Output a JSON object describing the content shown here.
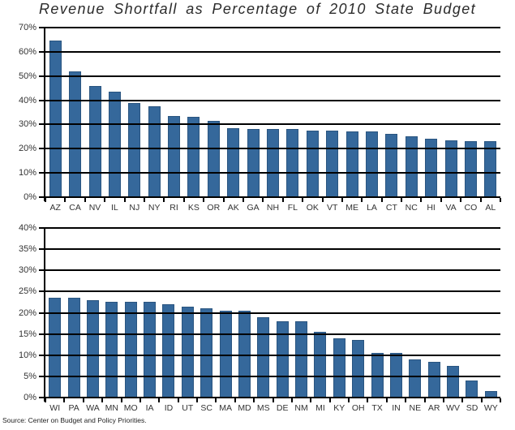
{
  "title": "Revenue Shortfall as Percentage of 2010 State Budget",
  "source": "Source: Center on Budget and Policy Priorities.",
  "colors": {
    "bar": "#35689B",
    "bar_border": "#2A5580",
    "grid": "#000000",
    "label": "#333333"
  },
  "chart_data": [
    {
      "type": "bar",
      "title": "Revenue Shortfall as Percentage of 2010 State Budget (states above ~23%)",
      "categories": [
        "AZ",
        "CA",
        "NV",
        "IL",
        "NJ",
        "NY",
        "RI",
        "KS",
        "OR",
        "AK",
        "GA",
        "NH",
        "FL",
        "OK",
        "VT",
        "ME",
        "LA",
        "CT",
        "NC",
        "HI",
        "VA",
        "CO",
        "AL"
      ],
      "values": [
        64.5,
        52,
        46,
        43.5,
        39,
        37.5,
        33.5,
        33,
        31.5,
        28.5,
        28,
        28,
        28,
        27.5,
        27.5,
        27,
        27,
        26,
        25,
        24,
        23.5,
        23,
        23
      ],
      "xlabel": "",
      "ylabel": "",
      "ylim": [
        0,
        70
      ],
      "ytick_step": 10,
      "ytick_labels": [
        "0%",
        "10%",
        "20%",
        "30%",
        "40%",
        "50%",
        "60%",
        "70%"
      ],
      "grid": true,
      "legend": "none",
      "bar_color": "#35689B"
    },
    {
      "type": "bar",
      "title": "Revenue Shortfall as Percentage of 2010 State Budget (remaining states)",
      "categories": [
        "WI",
        "PA",
        "WA",
        "MN",
        "MO",
        "IA",
        "ID",
        "UT",
        "SC",
        "MA",
        "MD",
        "MS",
        "DE",
        "NM",
        "MI",
        "KY",
        "OH",
        "TX",
        "IN",
        "NE",
        "AR",
        "WV",
        "SD",
        "WY"
      ],
      "values": [
        23.5,
        23.5,
        23,
        22.5,
        22.5,
        22.5,
        22,
        21.5,
        21,
        20.5,
        20.5,
        19,
        18,
        18,
        15.5,
        14,
        13.5,
        10.5,
        10.5,
        9,
        8.5,
        7.5,
        4,
        1.5
      ],
      "xlabel": "",
      "ylabel": "",
      "ylim": [
        0,
        40
      ],
      "ytick_step": 5,
      "ytick_labels": [
        "0%",
        "5%",
        "10%",
        "15%",
        "20%",
        "25%",
        "30%",
        "35%",
        "40%"
      ],
      "grid": true,
      "legend": "none",
      "bar_color": "#35689B"
    }
  ]
}
